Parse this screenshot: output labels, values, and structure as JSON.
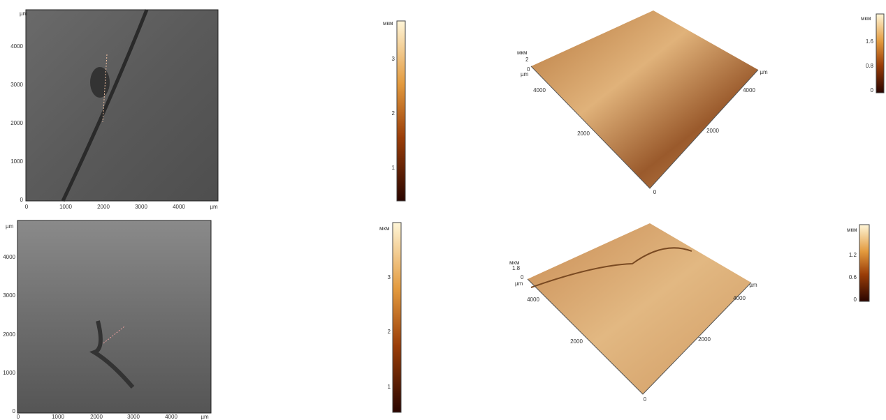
{
  "panels": [
    {
      "image": {
        "y_unit": "µm",
        "y_ticks": [
          4000,
          3000,
          2000,
          1000,
          0
        ],
        "x_ticks": [
          0,
          1000,
          2000,
          3000,
          4000
        ],
        "x_unit": "µm"
      },
      "colorbar": {
        "unit": "мкм",
        "ticks": [
          3,
          2,
          1
        ]
      },
      "surface": {
        "z_unit": "мкм",
        "z_ticks": [
          2,
          0
        ],
        "xy_unit": "µm",
        "left_ticks": [
          4000,
          2000
        ],
        "origin": 0,
        "right_ticks": [
          2000,
          4000
        ],
        "right_unit": "µm"
      },
      "surface_colorbar": {
        "unit": "мкм",
        "ticks": [
          1.6,
          0.8,
          0
        ]
      }
    },
    {
      "image": {
        "y_unit": "µm",
        "y_ticks": [
          4000,
          3000,
          2000,
          1000,
          0
        ],
        "x_ticks": [
          0,
          1000,
          2000,
          3000,
          4000
        ],
        "x_unit": "µm"
      },
      "colorbar": {
        "unit": "мкм",
        "ticks": [
          3,
          2,
          1
        ]
      },
      "surface": {
        "z_unit": "мкм",
        "z_ticks": [
          1.8,
          0
        ],
        "xy_unit": "µm",
        "left_ticks": [
          4000,
          2000
        ],
        "origin": 0,
        "right_ticks": [
          2000,
          4000
        ],
        "right_unit": "µm"
      },
      "surface_colorbar": {
        "unit": "мкм",
        "ticks": [
          1.2,
          0.6,
          0
        ]
      }
    }
  ]
}
